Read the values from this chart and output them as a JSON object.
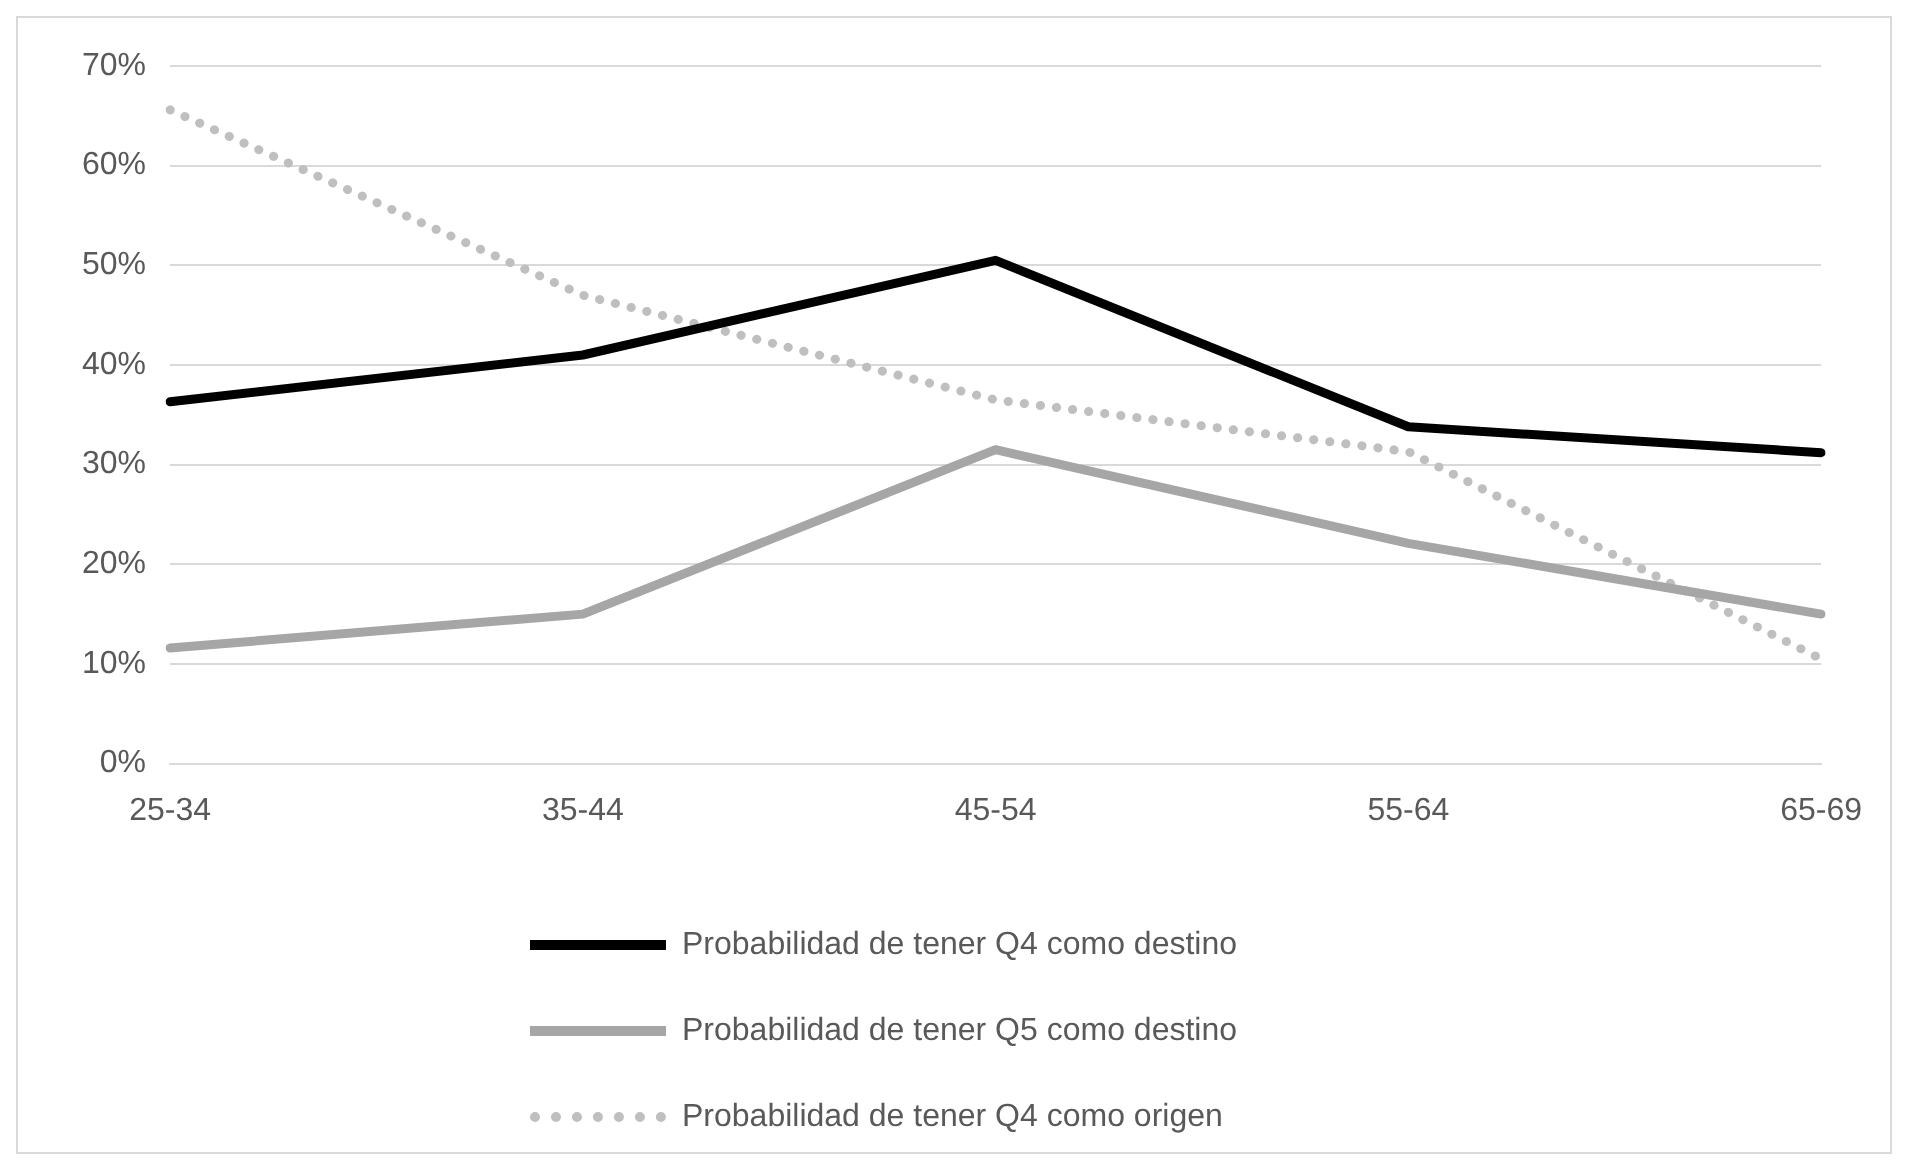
{
  "chart_data": {
    "type": "line",
    "categories": [
      "25-34",
      "35-44",
      "45-54",
      "55-64",
      "65-69"
    ],
    "series": [
      {
        "name": "Probabilidad de tener Q4 como destino",
        "color": "#000000",
        "values": [
          36.3,
          41,
          50.5,
          33.8,
          31.2
        ]
      },
      {
        "name": "Probabilidad de tener Q5 como destino",
        "color": "#a6a6a6",
        "values": [
          11.6,
          15,
          31.5,
          22.1,
          15
        ]
      },
      {
        "name": "Probabilidad de tener Q4 como origen",
        "color": "#bfbfbf",
        "line_style": "dotted",
        "values": [
          65.6,
          47,
          36.5,
          31.3,
          10.5
        ]
      }
    ],
    "ylim": [
      0,
      70
    ],
    "yticks": [
      {
        "value": 0,
        "label": "0%"
      },
      {
        "value": 10,
        "label": "10%"
      },
      {
        "value": 20,
        "label": "20%"
      },
      {
        "value": 30,
        "label": "30%"
      },
      {
        "value": 40,
        "label": "40%"
      },
      {
        "value": 50,
        "label": "50%"
      },
      {
        "value": 60,
        "label": "60%"
      },
      {
        "value": 70,
        "label": "70%"
      }
    ],
    "grid": "y",
    "legend": "bottom",
    "marker": "none",
    "line_style": "solid"
  }
}
